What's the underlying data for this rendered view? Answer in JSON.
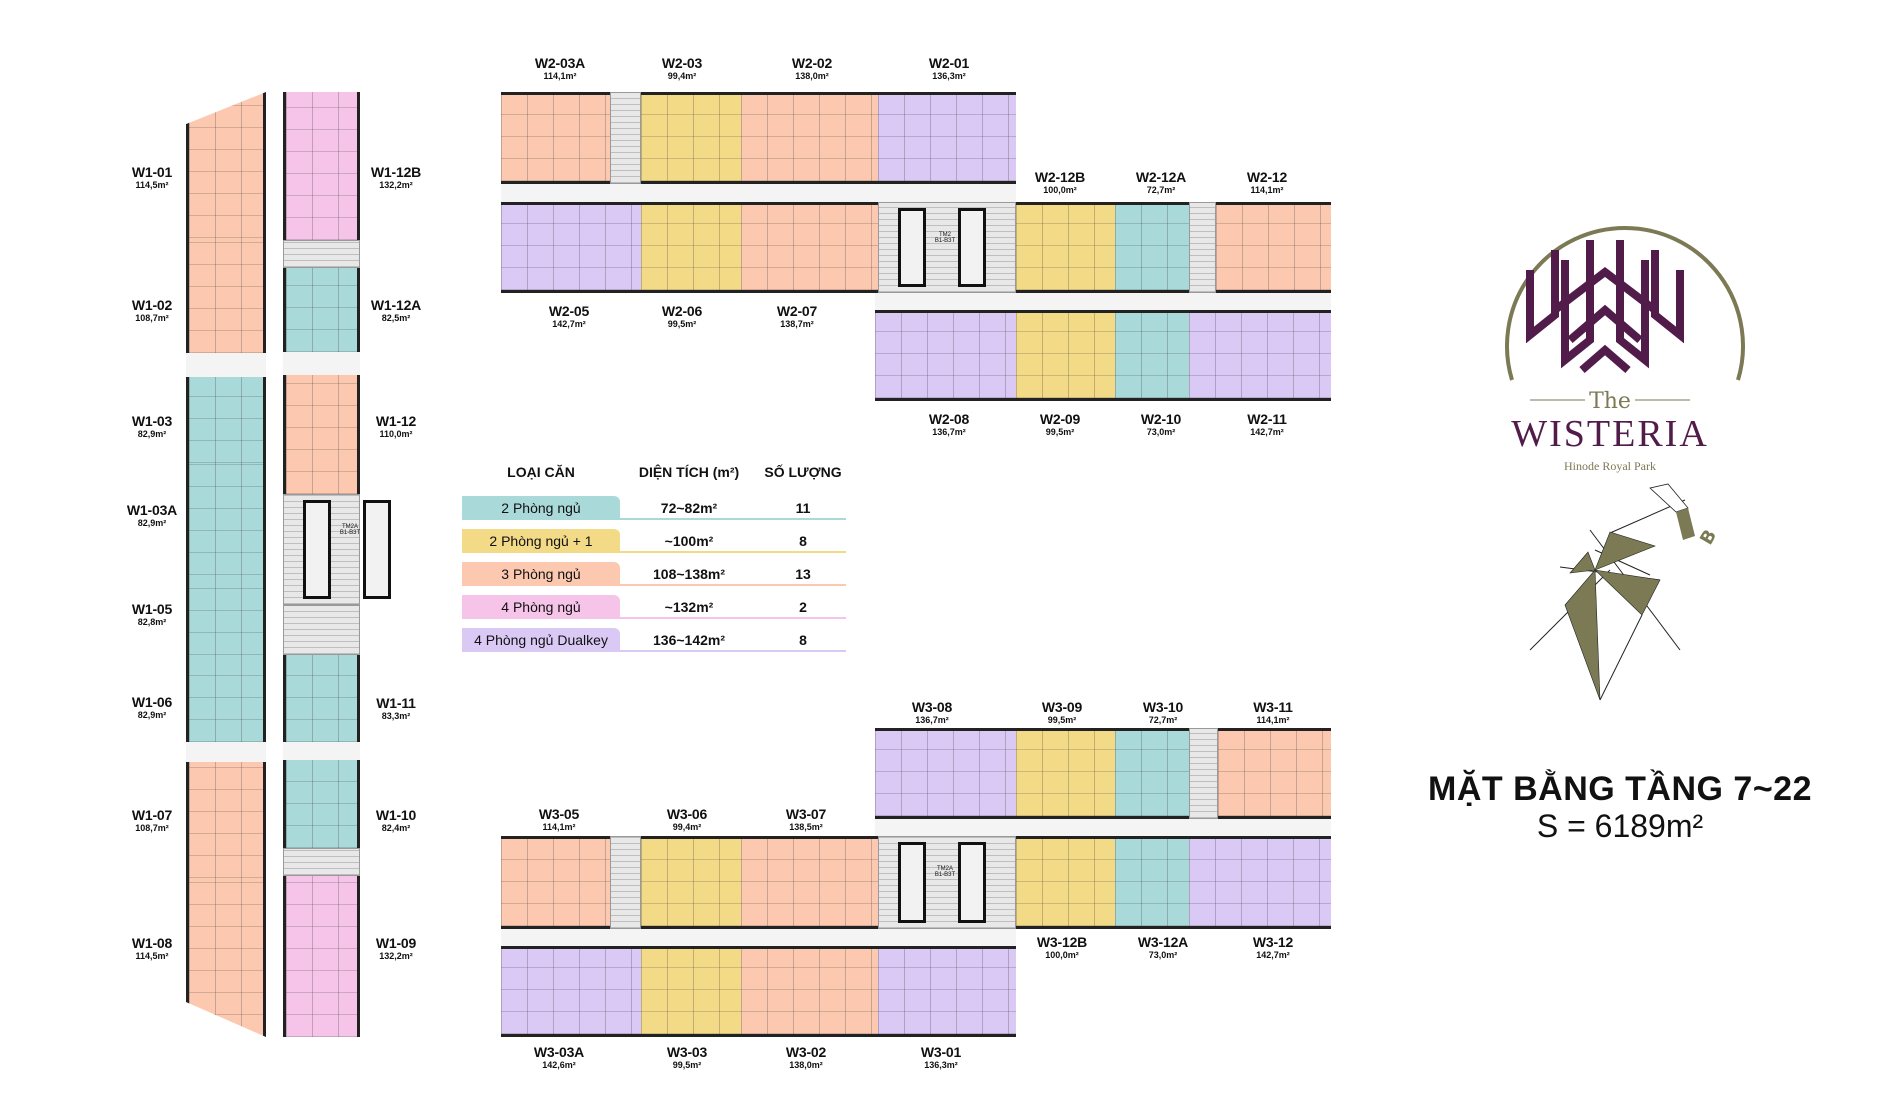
{
  "colors": {
    "2pn": "#a9d9d8",
    "2pn1": "#f3da86",
    "3pn": "#fcc9b0",
    "4pn": "#f6c4e8",
    "4pnd": "#d9c9f4",
    "core": "#e8e8e8",
    "brand_purple": "#521c4a",
    "brand_olive": "#7b7a55"
  },
  "units": [
    {
      "id": "W1-01",
      "area": "114,5m²",
      "type": "3pn"
    },
    {
      "id": "W1-02",
      "area": "108,7m²",
      "type": "3pn"
    },
    {
      "id": "W1-03",
      "area": "82,9m²",
      "type": "2pn"
    },
    {
      "id": "W1-03A",
      "area": "82,9m²",
      "type": "2pn"
    },
    {
      "id": "W1-05",
      "area": "82,8m²",
      "type": "2pn"
    },
    {
      "id": "W1-06",
      "area": "82,9m²",
      "type": "2pn"
    },
    {
      "id": "W1-07",
      "area": "108,7m²",
      "type": "3pn"
    },
    {
      "id": "W1-08",
      "area": "114,5m²",
      "type": "3pn"
    },
    {
      "id": "W1-12B",
      "area": "132,2m²",
      "type": "4pn"
    },
    {
      "id": "W1-12A",
      "area": "82,5m²",
      "type": "2pn"
    },
    {
      "id": "W1-12",
      "area": "110,0m²",
      "type": "3pn"
    },
    {
      "id": "W1-11",
      "area": "83,3m²",
      "type": "2pn"
    },
    {
      "id": "W1-10",
      "area": "82,4m²",
      "type": "2pn"
    },
    {
      "id": "W1-09",
      "area": "132,2m²",
      "type": "4pn"
    },
    {
      "id": "W2-03A",
      "area": "114,1m²",
      "type": "3pn"
    },
    {
      "id": "W2-03",
      "area": "99,4m²",
      "type": "2pn1"
    },
    {
      "id": "W2-02",
      "area": "138,0m²",
      "type": "3pn"
    },
    {
      "id": "W2-01",
      "area": "136,3m²",
      "type": "4pnd"
    },
    {
      "id": "W2-12B",
      "area": "100,0m²",
      "type": "2pn1"
    },
    {
      "id": "W2-12A",
      "area": "72,7m²",
      "type": "2pn"
    },
    {
      "id": "W2-12",
      "area": "114,1m²",
      "type": "3pn"
    },
    {
      "id": "W2-05",
      "area": "142,7m²",
      "type": "4pnd"
    },
    {
      "id": "W2-06",
      "area": "99,5m²",
      "type": "2pn1"
    },
    {
      "id": "W2-07",
      "area": "138,7m²",
      "type": "3pn"
    },
    {
      "id": "W2-08",
      "area": "136,7m²",
      "type": "4pnd"
    },
    {
      "id": "W2-09",
      "area": "99,5m²",
      "type": "2pn1"
    },
    {
      "id": "W2-10",
      "area": "73,0m²",
      "type": "2pn"
    },
    {
      "id": "W2-11",
      "area": "142,7m²",
      "type": "4pnd"
    },
    {
      "id": "W3-08",
      "area": "136,7m²",
      "type": "4pnd"
    },
    {
      "id": "W3-09",
      "area": "99,5m²",
      "type": "2pn1"
    },
    {
      "id": "W3-10",
      "area": "72,7m²",
      "type": "2pn"
    },
    {
      "id": "W3-11",
      "area": "114,1m²",
      "type": "3pn"
    },
    {
      "id": "W3-05",
      "area": "114,1m²",
      "type": "3pn"
    },
    {
      "id": "W3-06",
      "area": "99,4m²",
      "type": "2pn1"
    },
    {
      "id": "W3-07",
      "area": "138,5m²",
      "type": "3pn"
    },
    {
      "id": "W3-12B",
      "area": "100,0m²",
      "type": "2pn1"
    },
    {
      "id": "W3-12A",
      "area": "73,0m²",
      "type": "2pn"
    },
    {
      "id": "W3-12",
      "area": "142,7m²",
      "type": "4pnd"
    },
    {
      "id": "W3-03A",
      "area": "142,6m²",
      "type": "4pnd"
    },
    {
      "id": "W3-03",
      "area": "99,5m²",
      "type": "2pn1"
    },
    {
      "id": "W3-02",
      "area": "138,0m²",
      "type": "3pn"
    },
    {
      "id": "W3-01",
      "area": "136,3m²",
      "type": "4pnd"
    }
  ],
  "legend": {
    "headers": {
      "type": "LOẠI CĂN",
      "area": "DIỆN TÍCH (m²)",
      "count": "SỐ LƯỢNG"
    },
    "rows": [
      {
        "type": "2pn",
        "label": "2 Phòng ngủ",
        "area": "72~82m²",
        "count": "11"
      },
      {
        "type": "2pn1",
        "label": "2 Phòng ngủ + 1",
        "area": "~100m²",
        "count": "8"
      },
      {
        "type": "3pn",
        "label": "3 Phòng ngủ",
        "area": "108~138m²",
        "count": "13"
      },
      {
        "type": "4pn",
        "label": "4 Phòng ngủ",
        "area": "~132m²",
        "count": "2"
      },
      {
        "type": "4pnd",
        "label": "4 Phòng ngủ Dualkey",
        "area": "136~142m²",
        "count": "8"
      }
    ]
  },
  "core_labels": {
    "w2": "TM2\nB1-B3T",
    "w3": "TM2A\nB1-B3T"
  },
  "logo": {
    "the": "The",
    "name": "WISTERIA",
    "sub": "Hinode Royal Park"
  },
  "compass": {
    "label": "B"
  },
  "title": {
    "main": "MẶT BẰNG TẦNG 7~22",
    "area": "S = 6189m²"
  }
}
